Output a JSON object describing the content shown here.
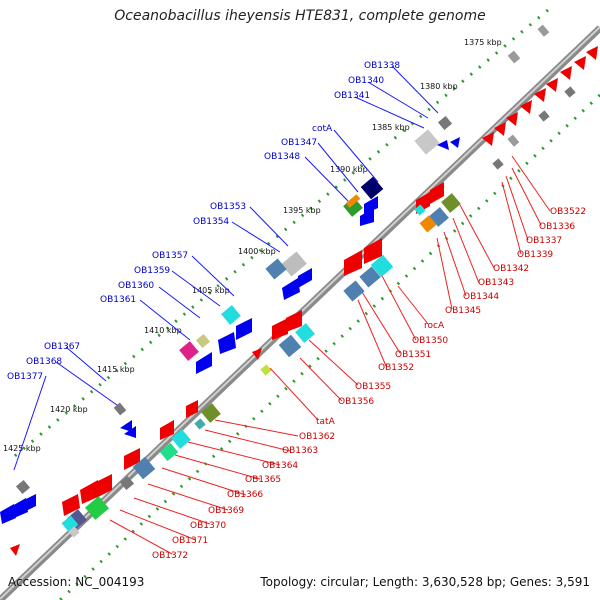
{
  "title": "Oceanobacillus iheyensis HTE831, complete genome",
  "footer": {
    "accession": "Accession: NC_004193",
    "summary": "Topology: circular; Length: 3,630,528 bp; Genes: 3,591"
  },
  "colors": {
    "backbone": "#7f7f7f",
    "tick": "#2e9a2e",
    "forward_label": "#0000cc",
    "reverse_label": "#cc0000",
    "forward_gene": "#0000ee",
    "reverse_gene": "#ee0000",
    "other_gray": "#9a9a9a",
    "cyan": "#22dddd",
    "steelblue": "#4f80b0",
    "olive": "#6f8f2a",
    "orange": "#ee8800",
    "magenta": "#dd2288",
    "navy": "#00006b",
    "teal": "#44aaaa"
  },
  "kbp_labels": [
    "1375 kbp",
    "1380 kbp",
    "1385 kbp",
    "1390 kbp",
    "1395 kbp",
    "1400 kbp",
    "1405 kbp",
    "1410 kbp",
    "1415 kbp",
    "1420 kbp",
    "1425 kbp"
  ],
  "forward_labels": [
    "OB1338",
    "OB1340",
    "OB1341",
    "cotA",
    "OB1347",
    "OB1348",
    "OB1353",
    "OB1354",
    "OB1357",
    "OB1359",
    "OB1360",
    "OB1361",
    "OB1367",
    "OB1368",
    "OB1377"
  ],
  "reverse_labels": [
    "OB3522",
    "OB1336",
    "OB1337",
    "OB1339",
    "OB1342",
    "OB1343",
    "OB1344",
    "OB1345",
    "rocA",
    "OB1350",
    "OB1351",
    "OB1352",
    "OB1355",
    "OB1356",
    "tatA",
    "OB1362",
    "OB1363",
    "OB1364",
    "OB1365",
    "OB1366",
    "OB1369",
    "OB1370",
    "OB1371",
    "OB1372"
  ]
}
